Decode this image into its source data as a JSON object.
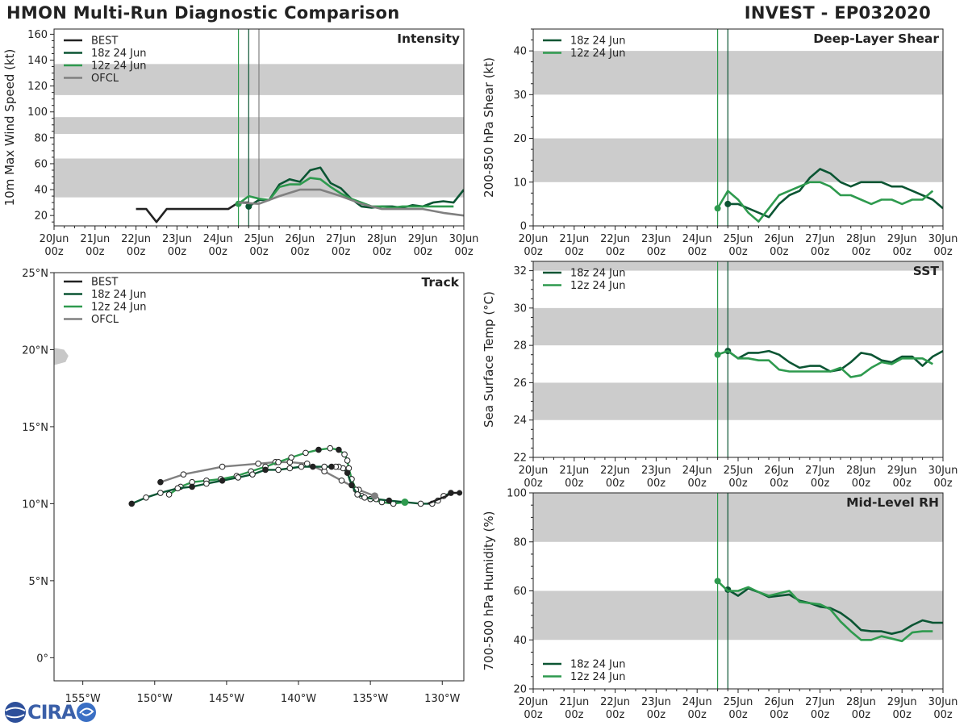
{
  "header": {
    "title": "HMON Multi-Run Diagnostic Comparison",
    "storm": "INVEST - EP032020"
  },
  "colors": {
    "best": "#222222",
    "run18": "#0b5533",
    "run12": "#2e9a4e",
    "ofcl": "#808080",
    "band": "#cccccc",
    "land": "#c8c8c8"
  },
  "time_ticks": [
    {
      "day": "20Jun",
      "hr": "00z"
    },
    {
      "day": "21Jun",
      "hr": "00z"
    },
    {
      "day": "22Jun",
      "hr": "00z"
    },
    {
      "day": "23Jun",
      "hr": "00z"
    },
    {
      "day": "24Jun",
      "hr": "00z"
    },
    {
      "day": "25Jun",
      "hr": "00z"
    },
    {
      "day": "26Jun",
      "hr": "00z"
    },
    {
      "day": "27Jun",
      "hr": "00z"
    },
    {
      "day": "28Jun",
      "hr": "00z"
    },
    {
      "day": "29Jun",
      "hr": "00z"
    },
    {
      "day": "30Jun",
      "hr": "00z"
    }
  ],
  "logo": {
    "text": "CIRA"
  },
  "chart_data": [
    {
      "id": "intensity",
      "type": "line",
      "title": "Intensity",
      "ylabel": "10m Max Wind Speed (kt)",
      "xlim": [
        0,
        10
      ],
      "ylim": [
        12,
        164
      ],
      "yticks": [
        20,
        40,
        60,
        80,
        100,
        120,
        140,
        160
      ],
      "bands": [
        [
          34,
          64
        ],
        [
          83,
          96
        ],
        [
          113,
          137
        ]
      ],
      "init_lines": [
        {
          "x": 4.5,
          "series": "12z 24 Jun"
        },
        {
          "x": 4.75,
          "series": "18z 24 Jun"
        },
        {
          "x": 5.0,
          "series": "OFCL"
        }
      ],
      "legend": [
        "BEST",
        "18z 24 Jun",
        "12z 24 Jun",
        "OFCL"
      ],
      "series": [
        {
          "name": "BEST",
          "x": [
            2.0,
            2.25,
            2.5,
            2.75,
            3.0,
            3.25,
            3.5,
            3.75,
            4.0,
            4.25,
            4.5,
            4.75
          ],
          "y": [
            25,
            25,
            15,
            25,
            25,
            25,
            25,
            25,
            25,
            25,
            30,
            30
          ]
        },
        {
          "name": "18z 24 Jun",
          "x": [
            4.75,
            5.0,
            5.25,
            5.5,
            5.75,
            6.0,
            6.25,
            6.5,
            6.75,
            7.0,
            7.25,
            7.5,
            7.75,
            8.0,
            8.25,
            8.5,
            8.75,
            9.0,
            9.25,
            9.5,
            9.75,
            10.0
          ],
          "y": [
            27,
            32,
            32,
            44,
            48,
            46,
            55,
            57,
            45,
            41,
            33,
            27,
            26,
            27,
            27,
            26,
            28,
            27,
            30,
            31,
            30,
            40
          ],
          "mark_start": true
        },
        {
          "name": "12z 24 Jun",
          "x": [
            4.5,
            4.75,
            5.0,
            5.25,
            5.5,
            5.75,
            6.0,
            6.25,
            6.5,
            6.75,
            7.0,
            7.25,
            7.5,
            7.75,
            8.0,
            8.25,
            8.5,
            8.75,
            9.0,
            9.25,
            9.5,
            9.75
          ],
          "y": [
            29,
            35,
            33,
            32,
            42,
            44,
            44,
            49,
            48,
            42,
            37,
            33,
            30,
            27,
            27,
            26,
            27,
            27,
            27,
            27,
            27,
            27
          ],
          "mark_start": true
        },
        {
          "name": "OFCL",
          "x": [
            4.5,
            5.0,
            5.5,
            6.0,
            6.5,
            7.0,
            7.5,
            8.0,
            8.5,
            9.0,
            9.5,
            10.0
          ],
          "y": [
            30,
            29,
            35,
            40,
            40,
            35,
            29,
            25,
            25,
            25,
            22,
            20
          ]
        }
      ]
    },
    {
      "id": "shear",
      "type": "line",
      "title": "Deep-Layer Shear",
      "ylabel": "200-850 hPa Shear (kt)",
      "xlim": [
        0,
        10
      ],
      "ylim": [
        0,
        45
      ],
      "yticks": [
        0,
        10,
        20,
        30,
        40
      ],
      "bands": [
        [
          10,
          20
        ],
        [
          30,
          40
        ]
      ],
      "init_lines": [
        {
          "x": 4.5,
          "series": "12z 24 Jun"
        },
        {
          "x": 4.75,
          "series": "18z 24 Jun"
        }
      ],
      "legend": [
        "18z 24 Jun",
        "12z 24 Jun"
      ],
      "series": [
        {
          "name": "18z 24 Jun",
          "x": [
            4.75,
            5.0,
            5.25,
            5.5,
            5.75,
            6.0,
            6.25,
            6.5,
            6.75,
            7.0,
            7.25,
            7.5,
            7.75,
            8.0,
            8.25,
            8.5,
            8.75,
            9.0,
            9.25,
            9.5,
            9.75,
            10.0
          ],
          "y": [
            5,
            5,
            4,
            3,
            2,
            5,
            7,
            8,
            11,
            13,
            12,
            10,
            9,
            10,
            10,
            10,
            9,
            9,
            8,
            7,
            6,
            4
          ],
          "mark_start": true
        },
        {
          "name": "12z 24 Jun",
          "x": [
            4.5,
            4.75,
            5.0,
            5.25,
            5.5,
            5.75,
            6.0,
            6.25,
            6.5,
            6.75,
            7.0,
            7.25,
            7.5,
            7.75,
            8.0,
            8.25,
            8.5,
            8.75,
            9.0,
            9.25,
            9.5,
            9.75
          ],
          "y": [
            4,
            8,
            6,
            3,
            1,
            4,
            7,
            8,
            9,
            10,
            10,
            9,
            7,
            7,
            6,
            5,
            6,
            6,
            5,
            6,
            6,
            8
          ],
          "mark_start": true
        }
      ]
    },
    {
      "id": "track",
      "type": "scatter",
      "title": "Track",
      "xlim": [
        -157,
        -128.5
      ],
      "ylim": [
        -1.5,
        25
      ],
      "xticks": [
        {
          "v": -155,
          "label": "155°W"
        },
        {
          "v": -150,
          "label": "150°W"
        },
        {
          "v": -145,
          "label": "145°W"
        },
        {
          "v": -140,
          "label": "140°W"
        },
        {
          "v": -135,
          "label": "135°W"
        },
        {
          "v": -130,
          "label": "130°W"
        }
      ],
      "yticks": [
        {
          "v": 0,
          "label": "0°"
        },
        {
          "v": 5,
          "label": "5°N"
        },
        {
          "v": 10,
          "label": "10°N"
        },
        {
          "v": 15,
          "label": "15°N"
        },
        {
          "v": 20,
          "label": "20°N"
        },
        {
          "v": 25,
          "label": "25°N"
        }
      ],
      "legend": [
        "BEST",
        "18z 24 Jun",
        "12z 24 Jun",
        "OFCL"
      ],
      "series": [
        {
          "name": "BEST",
          "lon": [
            -128.8,
            -129.4,
            -129.7,
            -130.5,
            -131.0
          ],
          "lat": [
            10.7,
            10.7,
            10.5,
            10.2,
            10.0
          ],
          "mark_end": true
        },
        {
          "name": "18z 24 Jun",
          "lon": [
            -129.4,
            -129.9,
            -130.3,
            -130.7,
            -131.5,
            -132.6,
            -133.7,
            -134.6,
            -135.4,
            -135.9,
            -136.3,
            -136.6,
            -136.9,
            -137.2,
            -137.4,
            -137.7,
            -138.2,
            -139.0,
            -139.8,
            -140.6,
            -141.4,
            -142.3,
            -143.2,
            -144.2,
            -145.3,
            -146.4,
            -147.4,
            -148.4,
            -149.6,
            -150.6,
            -151.6
          ],
          "lat": [
            10.7,
            10.5,
            10.2,
            10.0,
            10.0,
            10.1,
            10.2,
            10.3,
            10.4,
            10.6,
            11.2,
            12.0,
            12.3,
            12.4,
            12.4,
            12.4,
            12.4,
            12.4,
            12.4,
            12.3,
            12.2,
            12.2,
            11.9,
            11.7,
            11.5,
            11.3,
            11.1,
            11.0,
            10.7,
            10.4,
            10.0
          ],
          "filled": [
            true,
            false,
            false,
            false,
            false,
            false,
            true,
            false,
            false,
            false,
            true,
            true,
            false,
            false,
            false,
            true,
            false,
            true,
            false,
            false,
            false,
            true,
            false,
            false,
            true,
            false,
            true,
            false,
            false,
            false,
            true
          ]
        },
        {
          "name": "12z 24 Jun",
          "lon": [
            -132.6,
            -133.4,
            -134.2,
            -135.0,
            -135.6,
            -136.0,
            -136.3,
            -136.5,
            -136.6,
            -136.8,
            -137.2,
            -137.8,
            -138.6,
            -139.5,
            -140.5,
            -141.4,
            -142.3,
            -143.3,
            -144.3,
            -145.4,
            -146.4,
            -147.4,
            -148.2,
            -149.0
          ],
          "lat": [
            10.1,
            10.0,
            10.1,
            10.3,
            10.5,
            10.9,
            11.6,
            12.3,
            12.8,
            13.2,
            13.5,
            13.6,
            13.5,
            13.3,
            13.0,
            12.7,
            12.4,
            12.1,
            11.8,
            11.6,
            11.5,
            11.4,
            11.1,
            10.6
          ],
          "filled": [
            true,
            false,
            false,
            false,
            false,
            false,
            false,
            false,
            false,
            false,
            true,
            false,
            true,
            false,
            false,
            false,
            false,
            false,
            false,
            false,
            false,
            false,
            false,
            false
          ]
        },
        {
          "name": "OFCL",
          "lon": [
            -134.7,
            -135.8,
            -137.0,
            -138.2,
            -139.4,
            -140.6,
            -141.6,
            -142.8,
            -145.3,
            -148.0,
            -149.6
          ],
          "lat": [
            10.5,
            10.9,
            11.5,
            12.1,
            12.6,
            12.7,
            12.7,
            12.6,
            12.4,
            11.9,
            11.4
          ],
          "filled": [
            true,
            false,
            false,
            false,
            false,
            false,
            false,
            false,
            false,
            false,
            true
          ]
        }
      ]
    },
    {
      "id": "sst",
      "type": "line",
      "title": "SST",
      "ylabel": "Sea Surface Temp (°C)",
      "xlim": [
        0,
        10
      ],
      "ylim": [
        22,
        32.5
      ],
      "yticks": [
        22,
        24,
        26,
        28,
        30,
        32
      ],
      "bands": [
        [
          24,
          26
        ],
        [
          28,
          30
        ],
        [
          32,
          32.5
        ]
      ],
      "init_lines": [
        {
          "x": 4.5,
          "series": "12z 24 Jun"
        },
        {
          "x": 4.75,
          "series": "18z 24 Jun"
        }
      ],
      "legend": [
        "18z 24 Jun",
        "12z 24 Jun"
      ],
      "series": [
        {
          "name": "18z 24 Jun",
          "x": [
            4.75,
            5.0,
            5.25,
            5.5,
            5.75,
            6.0,
            6.25,
            6.5,
            6.75,
            7.0,
            7.25,
            7.5,
            7.75,
            8.0,
            8.25,
            8.5,
            8.75,
            9.0,
            9.25,
            9.5,
            9.75,
            10.0
          ],
          "y": [
            27.7,
            27.3,
            27.6,
            27.6,
            27.7,
            27.5,
            27.1,
            26.8,
            26.9,
            26.9,
            26.6,
            26.7,
            27.1,
            27.6,
            27.5,
            27.2,
            27.1,
            27.4,
            27.4,
            26.9,
            27.4,
            27.7
          ],
          "mark_start": true
        },
        {
          "name": "12z 24 Jun",
          "x": [
            4.5,
            4.75,
            5.0,
            5.25,
            5.5,
            5.75,
            6.0,
            6.25,
            6.5,
            6.75,
            7.0,
            7.25,
            7.5,
            7.75,
            8.0,
            8.25,
            8.5,
            8.75,
            9.0,
            9.25,
            9.5,
            9.75
          ],
          "y": [
            27.5,
            27.7,
            27.3,
            27.3,
            27.2,
            27.2,
            26.7,
            26.6,
            26.6,
            26.6,
            26.6,
            26.6,
            26.8,
            26.3,
            26.4,
            26.8,
            27.1,
            27.0,
            27.3,
            27.3,
            27.3,
            27.0
          ],
          "mark_start": true
        }
      ]
    },
    {
      "id": "rh",
      "type": "line",
      "title": "Mid-Level RH",
      "ylabel": "700-500 hPa Humidity (%)",
      "xlim": [
        0,
        10
      ],
      "ylim": [
        20,
        100
      ],
      "yticks": [
        20,
        40,
        60,
        80,
        100
      ],
      "bands": [
        [
          40,
          60
        ],
        [
          80,
          100
        ]
      ],
      "init_lines": [
        {
          "x": 4.5,
          "series": "12z 24 Jun"
        },
        {
          "x": 4.75,
          "series": "18z 24 Jun"
        }
      ],
      "legend": [
        "18z 24 Jun",
        "12z 24 Jun"
      ],
      "series": [
        {
          "name": "18z 24 Jun",
          "x": [
            4.75,
            5.0,
            5.25,
            5.5,
            5.75,
            6.0,
            6.25,
            6.5,
            6.75,
            7.0,
            7.25,
            7.5,
            7.75,
            8.0,
            8.25,
            8.5,
            8.75,
            9.0,
            9.25,
            9.5,
            9.75,
            10.0
          ],
          "y": [
            60.5,
            58,
            61,
            59.5,
            57.5,
            58,
            58.5,
            56,
            55,
            53.5,
            53,
            51,
            48,
            44,
            43.5,
            43.5,
            42.5,
            43.5,
            46,
            48,
            47,
            47
          ],
          "mark_start": true
        },
        {
          "name": "12z 24 Jun",
          "x": [
            4.5,
            4.75,
            5.0,
            5.25,
            5.5,
            5.75,
            6.0,
            6.25,
            6.5,
            6.75,
            7.0,
            7.25,
            7.5,
            7.75,
            8.0,
            8.25,
            8.5,
            8.75,
            9.0,
            9.25,
            9.5,
            9.75
          ],
          "y": [
            64,
            60,
            60,
            61.5,
            59.5,
            58,
            59,
            60,
            55.5,
            55,
            54.5,
            52.5,
            47.5,
            43.5,
            40,
            40,
            41.5,
            40.5,
            39.5,
            43,
            43.5,
            43.5
          ],
          "mark_start": true
        }
      ]
    }
  ]
}
